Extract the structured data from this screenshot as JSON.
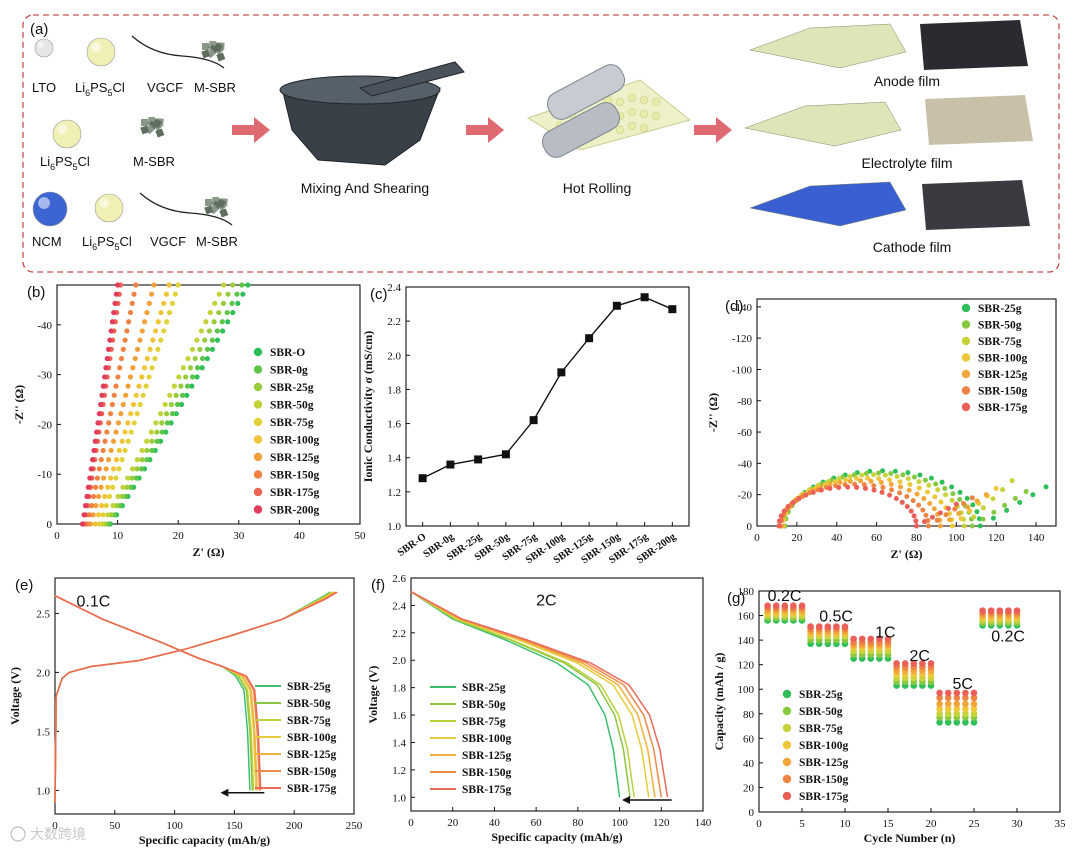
{
  "schematic": {
    "panel_label": "(a)",
    "row1": {
      "items": [
        "LTO",
        "Li6PS5Cl",
        "VGCF",
        "M-SBR"
      ]
    },
    "row2": {
      "items": [
        "Li6PS5Cl",
        "M-SBR"
      ]
    },
    "row3": {
      "items": [
        "NCM",
        "Li6PS5Cl",
        "VGCF",
        "M-SBR"
      ]
    },
    "step1": "Mixing And Shearing",
    "step2": "Hot Rolling",
    "products": [
      "Anode film",
      "Electrolyte film",
      "Cathode film"
    ],
    "colors": {
      "border": "#c45050",
      "arrow": "#e06a72",
      "lto": "#e6e6e6",
      "lpsc": "#f0f0b4",
      "ncm": "#3c64d2",
      "msbr": "#6b7a6b",
      "anode_powder": "#dde6b8",
      "cathode_powder": "#3a5fd0",
      "anode_film": "#2a2a30",
      "electrolyte_film": "#c8c0a8",
      "cathode_film": "#3a3a40"
    }
  },
  "watermark": "大数跨境",
  "chart_data": [
    {
      "panel": "(b)",
      "type": "scatter",
      "xlabel": "Z' (Ω)",
      "ylabel": "-Z'' (Ω)",
      "xlim": [
        0,
        50
      ],
      "ylim": [
        0,
        -50
      ],
      "xticks": [
        0,
        10,
        20,
        30,
        40,
        50
      ],
      "yticks": [
        0,
        -10,
        -20,
        -30,
        -40
      ],
      "legend_position": "center-right",
      "series": [
        {
          "name": "SBR-O",
          "color": "#2fbf5a",
          "x0": 8.8,
          "x1": 31.5
        },
        {
          "name": "SBR-0g",
          "color": "#5ec44a",
          "x0": 8.5,
          "x1": 30.5
        },
        {
          "name": "SBR-25g",
          "color": "#98cc3c",
          "x0": 8.0,
          "x1": 29.0
        },
        {
          "name": "SBR-50g",
          "color": "#c4d23a",
          "x0": 7.5,
          "x1": 27.5
        },
        {
          "name": "SBR-75g",
          "color": "#e2d23a",
          "x0": 7.0,
          "x1": 20.0
        },
        {
          "name": "SBR-100g",
          "color": "#f0c43a",
          "x0": 6.3,
          "x1": 18.5
        },
        {
          "name": "SBR-125g",
          "color": "#f2a03a",
          "x0": 5.5,
          "x1": 16.0
        },
        {
          "name": "SBR-150g",
          "color": "#ee8242",
          "x0": 5.0,
          "x1": 13.0
        },
        {
          "name": "SBR-175g",
          "color": "#ec6452",
          "x0": 4.5,
          "x1": 10.5
        },
        {
          "name": "SBR-200g",
          "color": "#e03c5c",
          "x0": 4.2,
          "x1": 10.0
        }
      ]
    },
    {
      "panel": "(c)",
      "type": "line",
      "ylabel": "Ionic Conductivity σ (mS/cm)",
      "categories": [
        "SBR-O",
        "SBR-0g",
        "SBR-25g",
        "SBR-50g",
        "SBR-75g",
        "SBR-100g",
        "SBR-125g",
        "SBR-150g",
        "SBR-175g",
        "SBR-200g"
      ],
      "values": [
        1.28,
        1.36,
        1.39,
        1.42,
        1.62,
        1.9,
        2.1,
        2.29,
        2.34,
        2.27
      ],
      "ylim": [
        1.0,
        2.4
      ],
      "yticks": [
        1.0,
        1.2,
        1.4,
        1.6,
        1.8,
        2.0,
        2.2,
        2.4
      ]
    },
    {
      "panel": "(d)",
      "type": "scatter",
      "xlabel": "Z' (Ω)",
      "ylabel": "-Z'' (Ω)",
      "xlim": [
        0,
        150
      ],
      "ylim": [
        0,
        -145
      ],
      "xticks": [
        0,
        20,
        40,
        60,
        80,
        100,
        120,
        140
      ],
      "yticks": [
        0,
        -20,
        -40,
        -60,
        -80,
        -100,
        -120,
        -140
      ],
      "legend_position": "top-right",
      "series": [
        {
          "name": "SBR-25g",
          "color": "#2fbf5a",
          "r0": 14,
          "r1": 112,
          "tail_end": [
            145,
            25
          ]
        },
        {
          "name": "SBR-50g",
          "color": "#86c840",
          "r0": 14,
          "r1": 108,
          "tail_end": [
            135,
            22
          ]
        },
        {
          "name": "SBR-75g",
          "color": "#c8d23a",
          "r0": 13,
          "r1": 104,
          "tail_end": [
            128,
            29
          ]
        },
        {
          "name": "SBR-100g",
          "color": "#ecc83a",
          "r0": 13,
          "r1": 98,
          "tail_end": [
            120,
            24
          ]
        },
        {
          "name": "SBR-125g",
          "color": "#f2a63a",
          "r0": 12,
          "r1": 92,
          "tail_end": [
            115,
            20
          ]
        },
        {
          "name": "SBR-150g",
          "color": "#ee8444",
          "r0": 12,
          "r1": 86,
          "tail_end": [
            108,
            18
          ]
        },
        {
          "name": "SBR-175g",
          "color": "#ea6058",
          "r0": 11,
          "r1": 80,
          "tail_end": [
            100,
            14
          ]
        }
      ]
    },
    {
      "panel": "(e)",
      "type": "line",
      "annotation": "0.1C",
      "xlabel": "Specific capacity (mAh/g)",
      "ylabel": "Voltage (V)",
      "xlim": [
        0,
        250
      ],
      "ylim": [
        0.8,
        2.8
      ],
      "xticks": [
        0,
        50,
        100,
        150,
        200,
        250
      ],
      "yticks": [
        1.0,
        1.5,
        2.0,
        2.5
      ],
      "legend_position": "bottom-right",
      "series": [
        {
          "name": "SBR-25g",
          "color": "#3cc070",
          "discharge_end": 163,
          "charge_end": 230
        },
        {
          "name": "SBR-50g",
          "color": "#8cc640",
          "discharge_end": 165,
          "charge_end": 231
        },
        {
          "name": "SBR-75g",
          "color": "#bcd03c",
          "discharge_end": 166,
          "charge_end": 232
        },
        {
          "name": "SBR-100g",
          "color": "#e6cc3c",
          "discharge_end": 168,
          "charge_end": 233
        },
        {
          "name": "SBR-125g",
          "color": "#f2b03c",
          "discharge_end": 169,
          "charge_end": 234
        },
        {
          "name": "SBR-150g",
          "color": "#ee8a48",
          "discharge_end": 171,
          "charge_end": 235
        },
        {
          "name": "SBR-175g",
          "color": "#ea6a5a",
          "discharge_end": 172,
          "charge_end": 236
        }
      ]
    },
    {
      "panel": "(f)",
      "type": "line",
      "annotation": "2C",
      "xlabel": "Specific capacity (mAh/g)",
      "ylabel": "Voltage (V)",
      "xlim": [
        0,
        140
      ],
      "ylim": [
        0.9,
        2.6
      ],
      "xticks": [
        0,
        20,
        40,
        60,
        80,
        100,
        120,
        140
      ],
      "yticks": [
        1.0,
        1.2,
        1.4,
        1.6,
        1.8,
        2.0,
        2.2,
        2.4,
        2.6
      ],
      "legend_position": "bottom-center",
      "series": [
        {
          "name": "SBR-25g",
          "color": "#3cc070",
          "end": 100
        },
        {
          "name": "SBR-50g",
          "color": "#8cc640",
          "end": 105
        },
        {
          "name": "SBR-75g",
          "color": "#bcd03c",
          "end": 107
        },
        {
          "name": "SBR-100g",
          "color": "#e6cc3c",
          "end": 114
        },
        {
          "name": "SBR-125g",
          "color": "#f2b03c",
          "end": 117
        },
        {
          "name": "SBR-150g",
          "color": "#ee8a48",
          "end": 120
        },
        {
          "name": "SBR-175g",
          "color": "#ea6a5a",
          "end": 123
        }
      ]
    },
    {
      "panel": "(g)",
      "type": "scatter",
      "xlabel": "Cycle Number (n)",
      "ylabel": "Capacity (mAh / g)",
      "xlim": [
        0,
        35
      ],
      "ylim": [
        0,
        180
      ],
      "xticks": [
        0,
        5,
        10,
        15,
        20,
        25,
        30,
        35
      ],
      "yticks": [
        0,
        20,
        40,
        60,
        80,
        100,
        120,
        140,
        160,
        180
      ],
      "legend_position": "bottom-left",
      "rate_labels": [
        "0.2C",
        "0.5C",
        "1C",
        "2C",
        "5C",
        "0.2C"
      ],
      "segments": [
        {
          "rate": "0.2C",
          "cycles": [
            1,
            5
          ]
        },
        {
          "rate": "0.5C",
          "cycles": [
            6,
            10
          ]
        },
        {
          "rate": "1C",
          "cycles": [
            11,
            15
          ]
        },
        {
          "rate": "2C",
          "cycles": [
            16,
            20
          ]
        },
        {
          "rate": "5C",
          "cycles": [
            21,
            25
          ]
        },
        {
          "rate": "0.2C",
          "cycles": [
            26,
            30
          ]
        }
      ],
      "series": [
        {
          "name": "SBR-25g",
          "color": "#2fbf5a",
          "values": [
            156,
            137,
            125,
            103,
            73,
            152
          ]
        },
        {
          "name": "SBR-50g",
          "color": "#86c840",
          "values": [
            158,
            140,
            128,
            106,
            77,
            154
          ]
        },
        {
          "name": "SBR-75g",
          "color": "#c8d23a",
          "values": [
            160,
            143,
            131,
            109,
            80,
            156
          ]
        },
        {
          "name": "SBR-100g",
          "color": "#ecc83a",
          "values": [
            162,
            145,
            134,
            112,
            84,
            158
          ]
        },
        {
          "name": "SBR-125g",
          "color": "#f2a63a",
          "values": [
            164,
            147,
            136,
            115,
            88,
            160
          ]
        },
        {
          "name": "SBR-150g",
          "color": "#ee8444",
          "values": [
            166,
            149,
            138,
            118,
            93,
            162
          ]
        },
        {
          "name": "SBR-175g",
          "color": "#ea6058",
          "values": [
            168,
            151,
            141,
            121,
            97,
            164
          ]
        }
      ]
    }
  ]
}
